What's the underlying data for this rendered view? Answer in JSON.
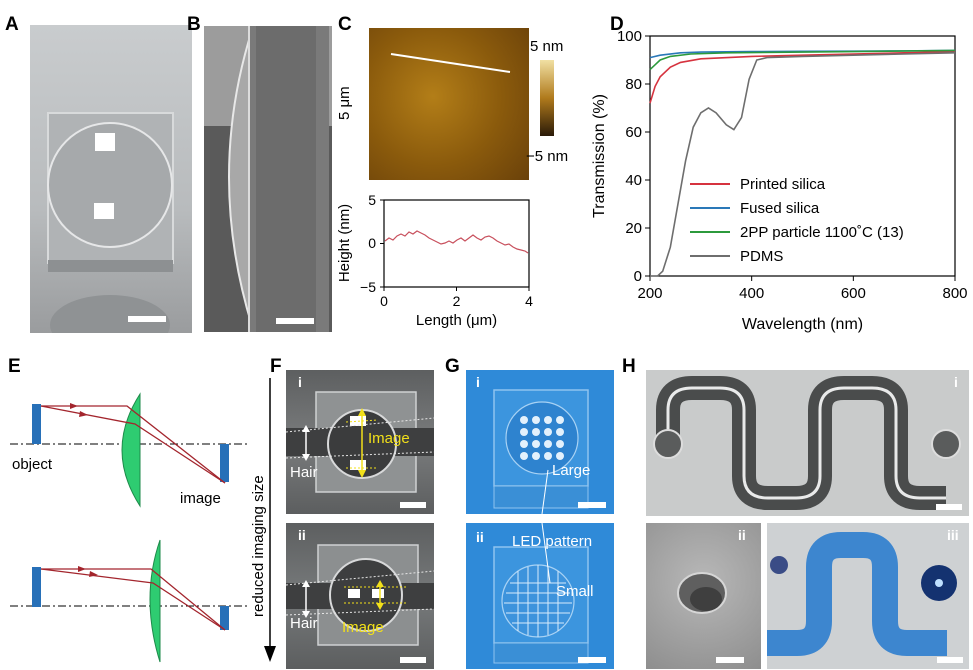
{
  "panels": {
    "a": "A",
    "b": "B",
    "c": "C",
    "d": "D",
    "e": "E",
    "f": "F",
    "g": "G",
    "h": "H"
  },
  "panel_c": {
    "afm_scale_label": "5 μm",
    "colorbar_top": "5 nm",
    "colorbar_bottom": "−5 nm",
    "profile": {
      "ylabel": "Height (nm)",
      "xlabel": "Length (μm)",
      "yticks": [
        "5",
        "0",
        "−5"
      ],
      "xticks": [
        "0",
        "2",
        "4"
      ]
    }
  },
  "chart_data": {
    "type": "line",
    "xlabel": "Wavelength (nm)",
    "ylabel": "Transmission (%)",
    "xlim": [
      200,
      800
    ],
    "ylim": [
      0,
      100
    ],
    "xticks": [
      200,
      400,
      600,
      800
    ],
    "yticks": [
      0,
      20,
      40,
      60,
      80,
      100
    ],
    "legend_position": "lower-center",
    "series": [
      {
        "name": "Printed silica",
        "color": "#d6333f",
        "points": [
          [
            200,
            72
          ],
          [
            210,
            79
          ],
          [
            220,
            83
          ],
          [
            240,
            87
          ],
          [
            260,
            89
          ],
          [
            300,
            90.5
          ],
          [
            400,
            91.5
          ],
          [
            500,
            92
          ],
          [
            600,
            92.5
          ],
          [
            700,
            93
          ],
          [
            800,
            93.5
          ]
        ]
      },
      {
        "name": "Fused silica",
        "color": "#2a78b8",
        "points": [
          [
            200,
            91
          ],
          [
            220,
            92
          ],
          [
            260,
            93
          ],
          [
            300,
            93.3
          ],
          [
            400,
            93.5
          ],
          [
            500,
            93.6
          ],
          [
            600,
            93.7
          ],
          [
            700,
            93.8
          ],
          [
            800,
            94
          ]
        ]
      },
      {
        "name": "2PP particle 1100˚C (13)",
        "color": "#2c9a3c",
        "points": [
          [
            200,
            86
          ],
          [
            210,
            88
          ],
          [
            220,
            90
          ],
          [
            240,
            91.5
          ],
          [
            280,
            92.5
          ],
          [
            350,
            93
          ],
          [
            450,
            93.2
          ],
          [
            600,
            93.5
          ],
          [
            800,
            94
          ]
        ]
      },
      {
        "name": "PDMS",
        "color": "#6e6e6e",
        "points": [
          [
            200,
            0
          ],
          [
            215,
            0
          ],
          [
            225,
            2
          ],
          [
            240,
            12
          ],
          [
            255,
            30
          ],
          [
            270,
            48
          ],
          [
            285,
            62
          ],
          [
            300,
            68
          ],
          [
            315,
            70
          ],
          [
            330,
            68
          ],
          [
            350,
            63
          ],
          [
            365,
            61
          ],
          [
            380,
            66
          ],
          [
            395,
            82
          ],
          [
            410,
            90
          ],
          [
            430,
            91
          ],
          [
            500,
            91.5
          ],
          [
            600,
            92
          ],
          [
            700,
            92.5
          ],
          [
            800,
            93
          ]
        ]
      }
    ]
  },
  "panel_e": {
    "object_label": "object",
    "image_label": "image"
  },
  "panel_f": {
    "arrow_label": "reduced imaging size",
    "i": {
      "sub": "i",
      "image": "Image",
      "hair": "Hair"
    },
    "ii": {
      "sub": "ii",
      "image": "Image",
      "hair": "Hair"
    }
  },
  "panel_g": {
    "i": {
      "sub": "i",
      "large": "Large"
    },
    "ii": {
      "sub": "ii",
      "led": "LED pattern",
      "small": "Small"
    }
  },
  "panel_h": {
    "i": "i",
    "ii": "ii",
    "iii": "iii"
  },
  "colors": {
    "printed_silica": "#d6333f",
    "fused_silica": "#2a78b8",
    "twopp": "#2c9a3c",
    "pdms": "#6e6e6e",
    "lens_green": "#2ecc71",
    "annotation_yellow": "#f2e01a"
  }
}
